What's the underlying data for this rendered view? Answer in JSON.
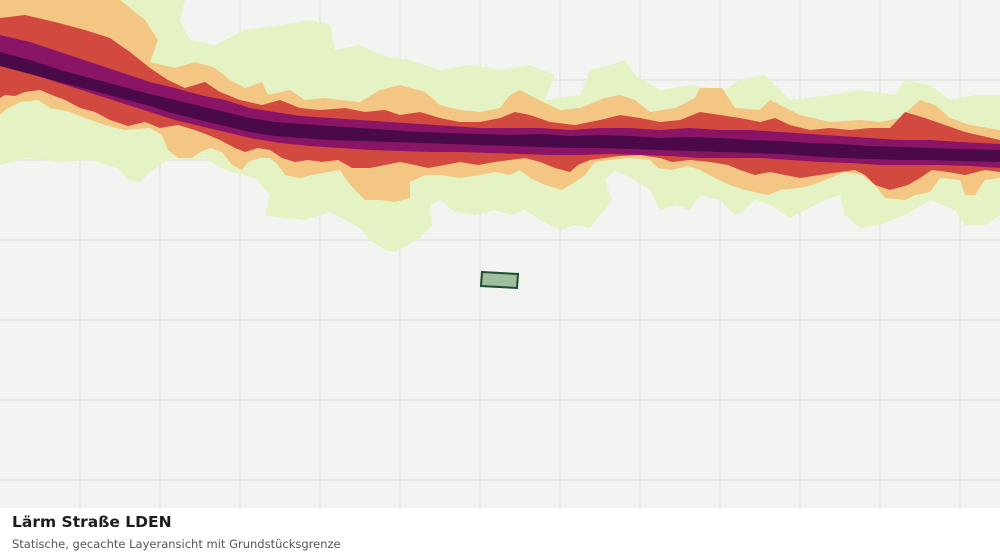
{
  "layer": {
    "title": "Lärm Straße LDEN",
    "subtitle": "Statische, gecachte Layeransicht mit Grundstücksgrenze"
  },
  "map": {
    "background_color": "#f3f4f2",
    "grid_color": "#dcdedb",
    "parcel": {
      "fill": "#9fbf9f",
      "stroke": "#1f4d2e"
    },
    "noise_bands": [
      {
        "level": "outer",
        "color": "#e4f2c4"
      },
      {
        "level": "mid",
        "color": "#f4c684"
      },
      {
        "level": "high",
        "color": "#d24a3f"
      },
      {
        "level": "very-high",
        "color": "#8a1466"
      },
      {
        "level": "max",
        "color": "#4a0a4a"
      }
    ]
  }
}
